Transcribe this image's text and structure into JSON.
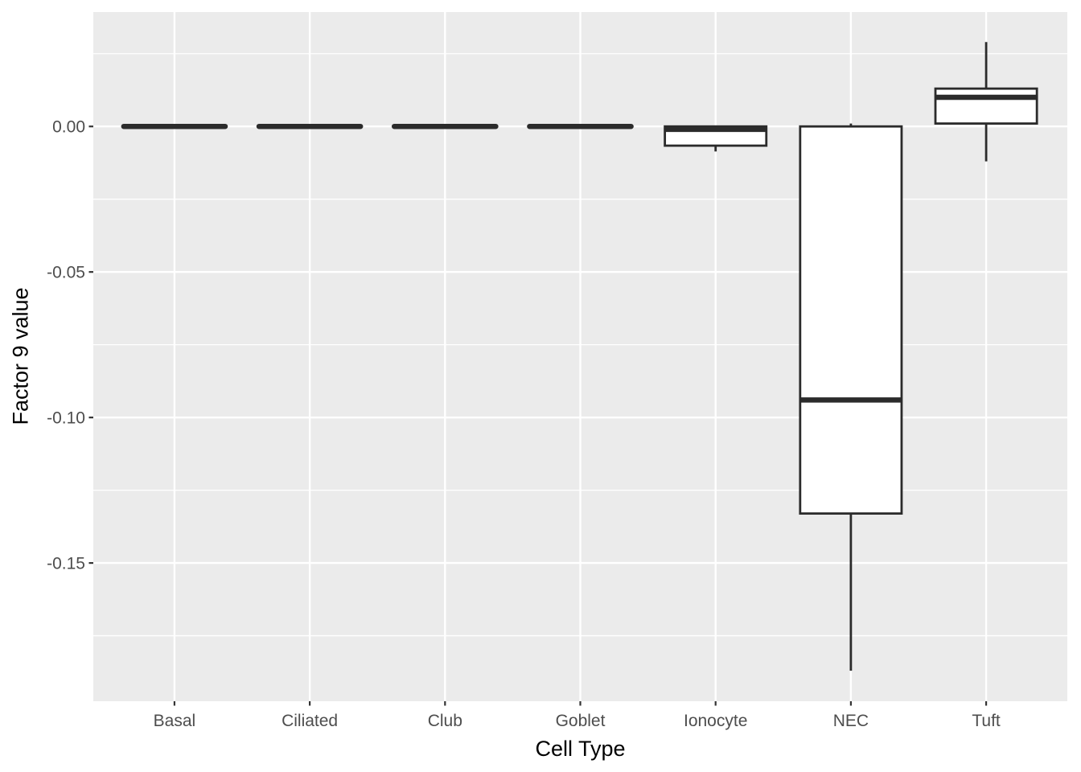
{
  "chart_data": {
    "type": "boxplot",
    "title": "",
    "xlabel": "Cell Type",
    "ylabel": "Factor 9 value",
    "categories": [
      "Basal",
      "Ciliated",
      "Club",
      "Goblet",
      "Ionocyte",
      "NEC",
      "Tuft"
    ],
    "series": [
      {
        "name": "Basal",
        "min": 0.0,
        "q1": 0.0,
        "median": 0.0,
        "q3": 0.0,
        "max": 0.0
      },
      {
        "name": "Ciliated",
        "min": 0.0,
        "q1": 0.0,
        "median": 0.0,
        "q3": 0.0,
        "max": 0.0
      },
      {
        "name": "Club",
        "min": 0.0,
        "q1": 0.0,
        "median": 0.0,
        "q3": 0.0,
        "max": 0.0
      },
      {
        "name": "Goblet",
        "min": 0.0,
        "q1": 0.0,
        "median": 0.0,
        "q3": 0.0,
        "max": 0.0
      },
      {
        "name": "Ionocyte",
        "min": -0.0086,
        "q1": -0.0066,
        "median": -0.001,
        "q3": 0.0,
        "max": 0.0
      },
      {
        "name": "NEC",
        "min": -0.187,
        "q1": -0.133,
        "median": -0.094,
        "q3": 0.0,
        "max": 0.001
      },
      {
        "name": "Tuft",
        "min": -0.012,
        "q1": 0.001,
        "median": 0.01,
        "q3": 0.013,
        "max": 0.029
      }
    ],
    "y_ticks": [
      0,
      -0.05,
      -0.1,
      -0.15
    ],
    "y_tick_labels": [
      "0.00",
      "-0.05",
      "-0.10",
      "-0.15"
    ],
    "y_minor_ticks": [
      0.025,
      -0.025,
      -0.075,
      -0.125,
      -0.175
    ],
    "ylim": [
      -0.1975,
      0.0393
    ],
    "box_width_fraction": 0.75,
    "grid": true,
    "legend": "none",
    "colors": {
      "panel_bg": "#EBEBEB",
      "grid": "#FFFFFF",
      "box_stroke": "#2B2B2B",
      "box_fill": "#FFFFFF",
      "tick": "#333333",
      "tick_label": "#4D4D4D",
      "axis_title": "#000000"
    }
  }
}
